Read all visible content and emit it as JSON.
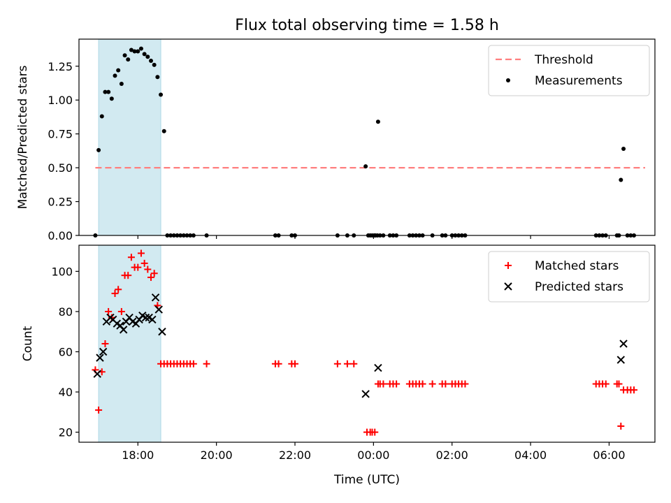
{
  "chart_data": [
    {
      "type": "scatter",
      "title": "Flux total observing time = 1.58 h",
      "xlabel": "",
      "ylabel": "Matched/Predicted stars",
      "xlim": [
        "16:30",
        "07:10"
      ],
      "ylim": [
        0,
        1.45
      ],
      "xticks": [
        "18:00",
        "20:00",
        "22:00",
        "00:00",
        "02:00",
        "04:00",
        "06:00"
      ],
      "yticks": [
        "0.00",
        "0.25",
        "0.50",
        "0.75",
        "1.00",
        "1.25"
      ],
      "legend_position": "top-right",
      "shaded_interval": [
        "17:00",
        "18:35"
      ],
      "shade_color": "#add8e6",
      "threshold": {
        "name": "Threshold",
        "value": 0.5,
        "x_range": [
          "16:55",
          "06:55"
        ],
        "color": "#ff7f7f",
        "style": "dashed"
      },
      "series": [
        {
          "name": "Measurements",
          "color": "#000000",
          "marker": "dot",
          "points": [
            [
              "16:55",
              0.0
            ],
            [
              "17:00",
              0.63
            ],
            [
              "17:05",
              0.88
            ],
            [
              "17:10",
              1.06
            ],
            [
              "17:15",
              1.06
            ],
            [
              "17:20",
              1.01
            ],
            [
              "17:25",
              1.18
            ],
            [
              "17:30",
              1.22
            ],
            [
              "17:35",
              1.12
            ],
            [
              "17:40",
              1.33
            ],
            [
              "17:45",
              1.3
            ],
            [
              "17:50",
              1.37
            ],
            [
              "17:55",
              1.36
            ],
            [
              "18:00",
              1.36
            ],
            [
              "18:05",
              1.38
            ],
            [
              "18:10",
              1.34
            ],
            [
              "18:15",
              1.32
            ],
            [
              "18:20",
              1.29
            ],
            [
              "18:25",
              1.26
            ],
            [
              "18:30",
              1.17
            ],
            [
              "18:35",
              1.04
            ],
            [
              "18:40",
              0.77
            ],
            [
              "18:45",
              0.0
            ],
            [
              "18:50",
              0.0
            ],
            [
              "18:55",
              0.0
            ],
            [
              "19:00",
              0.0
            ],
            [
              "19:05",
              0.0
            ],
            [
              "19:10",
              0.0
            ],
            [
              "19:15",
              0.0
            ],
            [
              "19:20",
              0.0
            ],
            [
              "19:25",
              0.0
            ],
            [
              "19:45",
              0.0
            ],
            [
              "21:30",
              0.0
            ],
            [
              "21:35",
              0.0
            ],
            [
              "21:55",
              0.0
            ],
            [
              "22:00",
              0.0
            ],
            [
              "23:05",
              0.0
            ],
            [
              "23:20",
              0.0
            ],
            [
              "23:30",
              0.0
            ],
            [
              "23:48",
              0.51
            ],
            [
              "23:52",
              0.0
            ],
            [
              "23:55",
              0.0
            ],
            [
              "23:58",
              0.0
            ],
            [
              "00:01",
              0.0
            ],
            [
              "00:03",
              0.0
            ],
            [
              "00:06",
              0.0
            ],
            [
              "00:07",
              0.84
            ],
            [
              "00:10",
              0.0
            ],
            [
              "00:15",
              0.0
            ],
            [
              "00:25",
              0.0
            ],
            [
              "00:30",
              0.0
            ],
            [
              "00:35",
              0.0
            ],
            [
              "00:55",
              0.0
            ],
            [
              "01:00",
              0.0
            ],
            [
              "01:05",
              0.0
            ],
            [
              "01:10",
              0.0
            ],
            [
              "01:15",
              0.0
            ],
            [
              "01:30",
              0.0
            ],
            [
              "01:45",
              0.0
            ],
            [
              "01:50",
              0.0
            ],
            [
              "02:00",
              0.0
            ],
            [
              "02:05",
              0.0
            ],
            [
              "02:10",
              0.0
            ],
            [
              "02:15",
              0.0
            ],
            [
              "02:20",
              0.0
            ],
            [
              "05:40",
              0.0
            ],
            [
              "05:45",
              0.0
            ],
            [
              "05:50",
              0.0
            ],
            [
              "05:55",
              0.0
            ],
            [
              "06:12",
              0.0
            ],
            [
              "06:15",
              0.0
            ],
            [
              "06:18",
              0.41
            ],
            [
              "06:22",
              0.64
            ],
            [
              "06:28",
              0.0
            ],
            [
              "06:33",
              0.0
            ],
            [
              "06:38",
              0.0
            ]
          ]
        }
      ]
    },
    {
      "type": "scatter",
      "title": "",
      "xlabel": "Time (UTC)",
      "ylabel": "Count",
      "xlim": [
        "16:30",
        "07:10"
      ],
      "ylim": [
        15,
        113
      ],
      "xticks": [
        "18:00",
        "20:00",
        "22:00",
        "00:00",
        "02:00",
        "04:00",
        "06:00"
      ],
      "yticks": [
        "20",
        "40",
        "60",
        "80",
        "100"
      ],
      "legend_position": "top-right",
      "shaded_interval": [
        "17:00",
        "18:35"
      ],
      "shade_color": "#add8e6",
      "series": [
        {
          "name": "Matched stars",
          "color": "#ff0000",
          "marker": "plus",
          "points": [
            [
              "16:55",
              51
            ],
            [
              "17:00",
              31
            ],
            [
              "17:05",
              50
            ],
            [
              "17:10",
              64
            ],
            [
              "17:15",
              80
            ],
            [
              "17:20",
              77
            ],
            [
              "17:25",
              89
            ],
            [
              "17:30",
              91
            ],
            [
              "17:35",
              80
            ],
            [
              "17:40",
              98
            ],
            [
              "17:45",
              98
            ],
            [
              "17:50",
              107
            ],
            [
              "17:55",
              102
            ],
            [
              "18:00",
              102
            ],
            [
              "18:05",
              109
            ],
            [
              "18:10",
              104
            ],
            [
              "18:15",
              101
            ],
            [
              "18:20",
              97
            ],
            [
              "18:25",
              99
            ],
            [
              "18:30",
              83
            ],
            [
              "18:35",
              54
            ],
            [
              "18:40",
              54
            ],
            [
              "18:45",
              54
            ],
            [
              "18:50",
              54
            ],
            [
              "18:55",
              54
            ],
            [
              "19:00",
              54
            ],
            [
              "19:05",
              54
            ],
            [
              "19:10",
              54
            ],
            [
              "19:15",
              54
            ],
            [
              "19:20",
              54
            ],
            [
              "19:25",
              54
            ],
            [
              "19:45",
              54
            ],
            [
              "21:30",
              54
            ],
            [
              "21:35",
              54
            ],
            [
              "21:55",
              54
            ],
            [
              "22:00",
              54
            ],
            [
              "23:05",
              54
            ],
            [
              "23:20",
              54
            ],
            [
              "23:30",
              54
            ],
            [
              "23:50",
              20
            ],
            [
              "23:55",
              20
            ],
            [
              "23:58",
              20
            ],
            [
              "00:02",
              20
            ],
            [
              "00:07",
              44
            ],
            [
              "00:10",
              44
            ],
            [
              "00:15",
              44
            ],
            [
              "00:25",
              44
            ],
            [
              "00:30",
              44
            ],
            [
              "00:35",
              44
            ],
            [
              "00:55",
              44
            ],
            [
              "01:00",
              44
            ],
            [
              "01:05",
              44
            ],
            [
              "01:10",
              44
            ],
            [
              "01:15",
              44
            ],
            [
              "01:30",
              44
            ],
            [
              "01:45",
              44
            ],
            [
              "01:50",
              44
            ],
            [
              "02:00",
              44
            ],
            [
              "02:05",
              44
            ],
            [
              "02:10",
              44
            ],
            [
              "02:15",
              44
            ],
            [
              "02:20",
              44
            ],
            [
              "05:40",
              44
            ],
            [
              "05:45",
              44
            ],
            [
              "05:50",
              44
            ],
            [
              "05:55",
              44
            ],
            [
              "06:12",
              44
            ],
            [
              "06:15",
              44
            ],
            [
              "06:18",
              23
            ],
            [
              "06:22",
              41
            ],
            [
              "06:28",
              41
            ],
            [
              "06:33",
              41
            ],
            [
              "06:38",
              41
            ]
          ]
        },
        {
          "name": "Predicted stars",
          "color": "#000000",
          "marker": "x",
          "points": [
            [
              "16:58",
              49
            ],
            [
              "17:02",
              57
            ],
            [
              "17:07",
              60
            ],
            [
              "17:12",
              75
            ],
            [
              "17:18",
              77
            ],
            [
              "17:22",
              76
            ],
            [
              "17:28",
              74
            ],
            [
              "17:33",
              73
            ],
            [
              "17:38",
              71
            ],
            [
              "17:42",
              75
            ],
            [
              "17:47",
              77
            ],
            [
              "17:52",
              75
            ],
            [
              "17:57",
              74
            ],
            [
              "18:02",
              76
            ],
            [
              "18:07",
              78
            ],
            [
              "18:12",
              77
            ],
            [
              "18:17",
              77
            ],
            [
              "18:22",
              76
            ],
            [
              "18:27",
              87
            ],
            [
              "18:32",
              81
            ],
            [
              "18:37",
              70
            ],
            [
              "23:48",
              39
            ],
            [
              "00:07",
              52
            ],
            [
              "06:18",
              56
            ],
            [
              "06:22",
              64
            ]
          ]
        }
      ]
    }
  ]
}
